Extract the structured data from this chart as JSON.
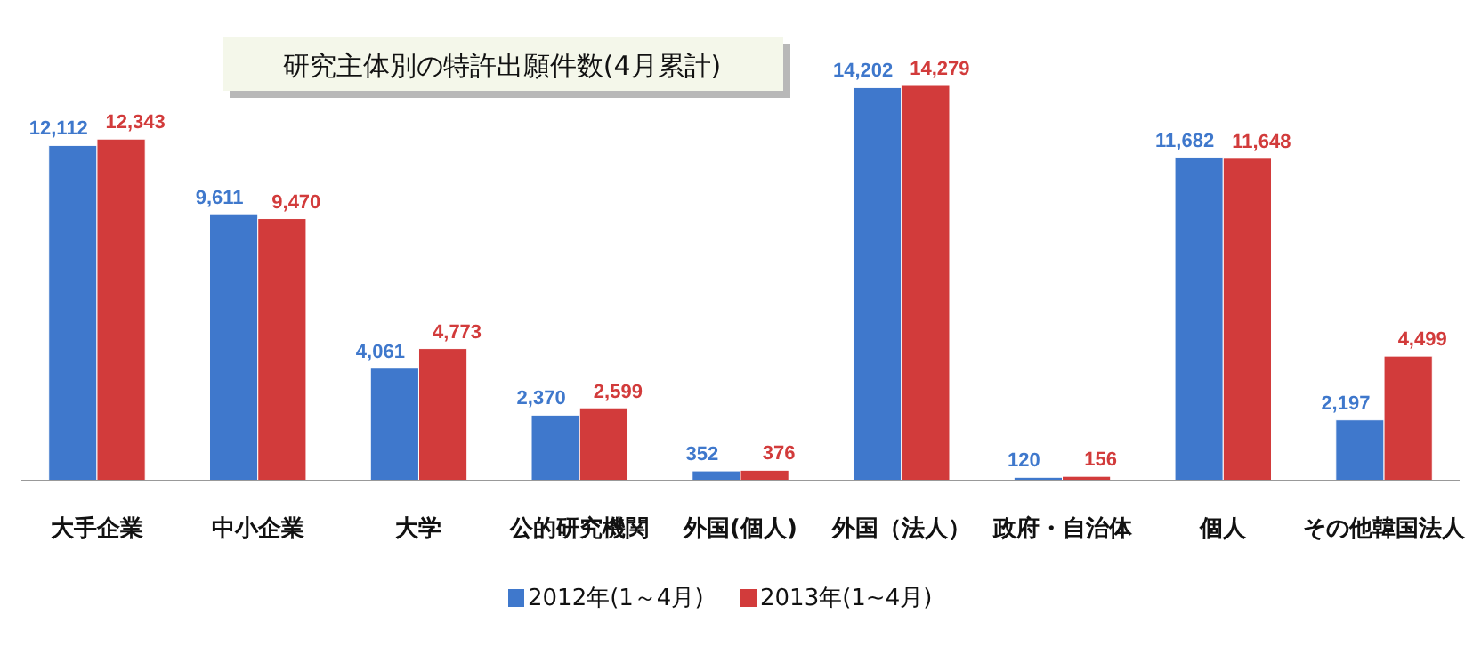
{
  "chart_data": {
    "type": "bar",
    "title": "研究主体別の特許出願件数(4月累計)",
    "categories": [
      "大手企業",
      "中小企業",
      "大学",
      "公的研究機関",
      "外国(個人)",
      "外国（法人）",
      "政府・自治体",
      "個人",
      "その他韓国法人"
    ],
    "series": [
      {
        "name": "2012年(1～4月)",
        "color": "#3f78cc",
        "values": [
          12112,
          9611,
          4061,
          2370,
          352,
          14202,
          120,
          11682,
          2197
        ],
        "value_labels": [
          "12,112",
          "9,611",
          "4,061",
          "2,370",
          "352",
          "14,202",
          "120",
          "11,682",
          "2,197"
        ]
      },
      {
        "name": "2013年(1~4月)",
        "color": "#d23b3b",
        "values": [
          12343,
          9470,
          4773,
          2599,
          376,
          14279,
          156,
          11648,
          4499
        ],
        "value_labels": [
          "12,343",
          "9,470",
          "4,773",
          "2,599",
          "376",
          "14,279",
          "156",
          "11,648",
          "4,499"
        ]
      }
    ],
    "legend": "bottom"
  }
}
